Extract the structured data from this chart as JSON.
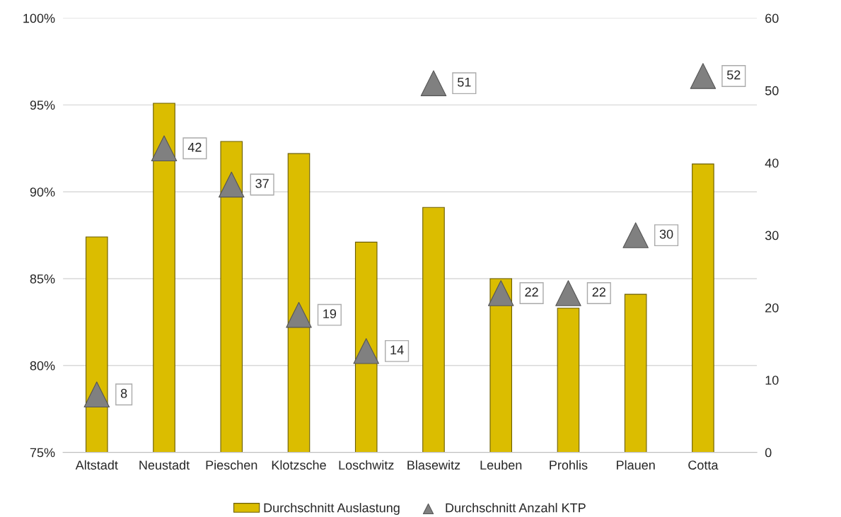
{
  "chart_data": {
    "type": "bar",
    "categories": [
      "Altstadt",
      "Neustadt",
      "Pieschen",
      "Klotzsche",
      "Loschwitz",
      "Blasewitz",
      "Leuben",
      "Prohlis",
      "Plauen",
      "Cotta"
    ],
    "series": [
      {
        "name": "Durchschnitt Auslastung",
        "color": "#dbbd00",
        "values": [
          87.4,
          95.1,
          92.9,
          92.2,
          87.1,
          89.1,
          85.0,
          83.3,
          84.1,
          91.6
        ]
      },
      {
        "name": "Durchschnitt Anzahl KTP",
        "type": "scatter",
        "axis": "y2",
        "marker": "triangle",
        "color": "#808080",
        "values": [
          8,
          42,
          37,
          19,
          14,
          51,
          22,
          22,
          30,
          52
        ],
        "value_labels": [
          "8",
          "42",
          "37",
          "19",
          "14",
          "51",
          "22",
          "22",
          "30",
          "52"
        ]
      }
    ],
    "ylim": [
      75,
      100
    ],
    "yticks": [
      {
        "value": 75,
        "label": "75%"
      },
      {
        "value": 80,
        "label": "80%"
      },
      {
        "value": 85,
        "label": "85%"
      },
      {
        "value": 90,
        "label": "90%"
      },
      {
        "value": 95,
        "label": "95%"
      },
      {
        "value": 100,
        "label": "100%"
      }
    ],
    "y2lim": [
      0,
      60
    ],
    "y2ticks": [
      0,
      10,
      20,
      30,
      40,
      50,
      60
    ],
    "grid": "y",
    "legend": "bottom"
  }
}
